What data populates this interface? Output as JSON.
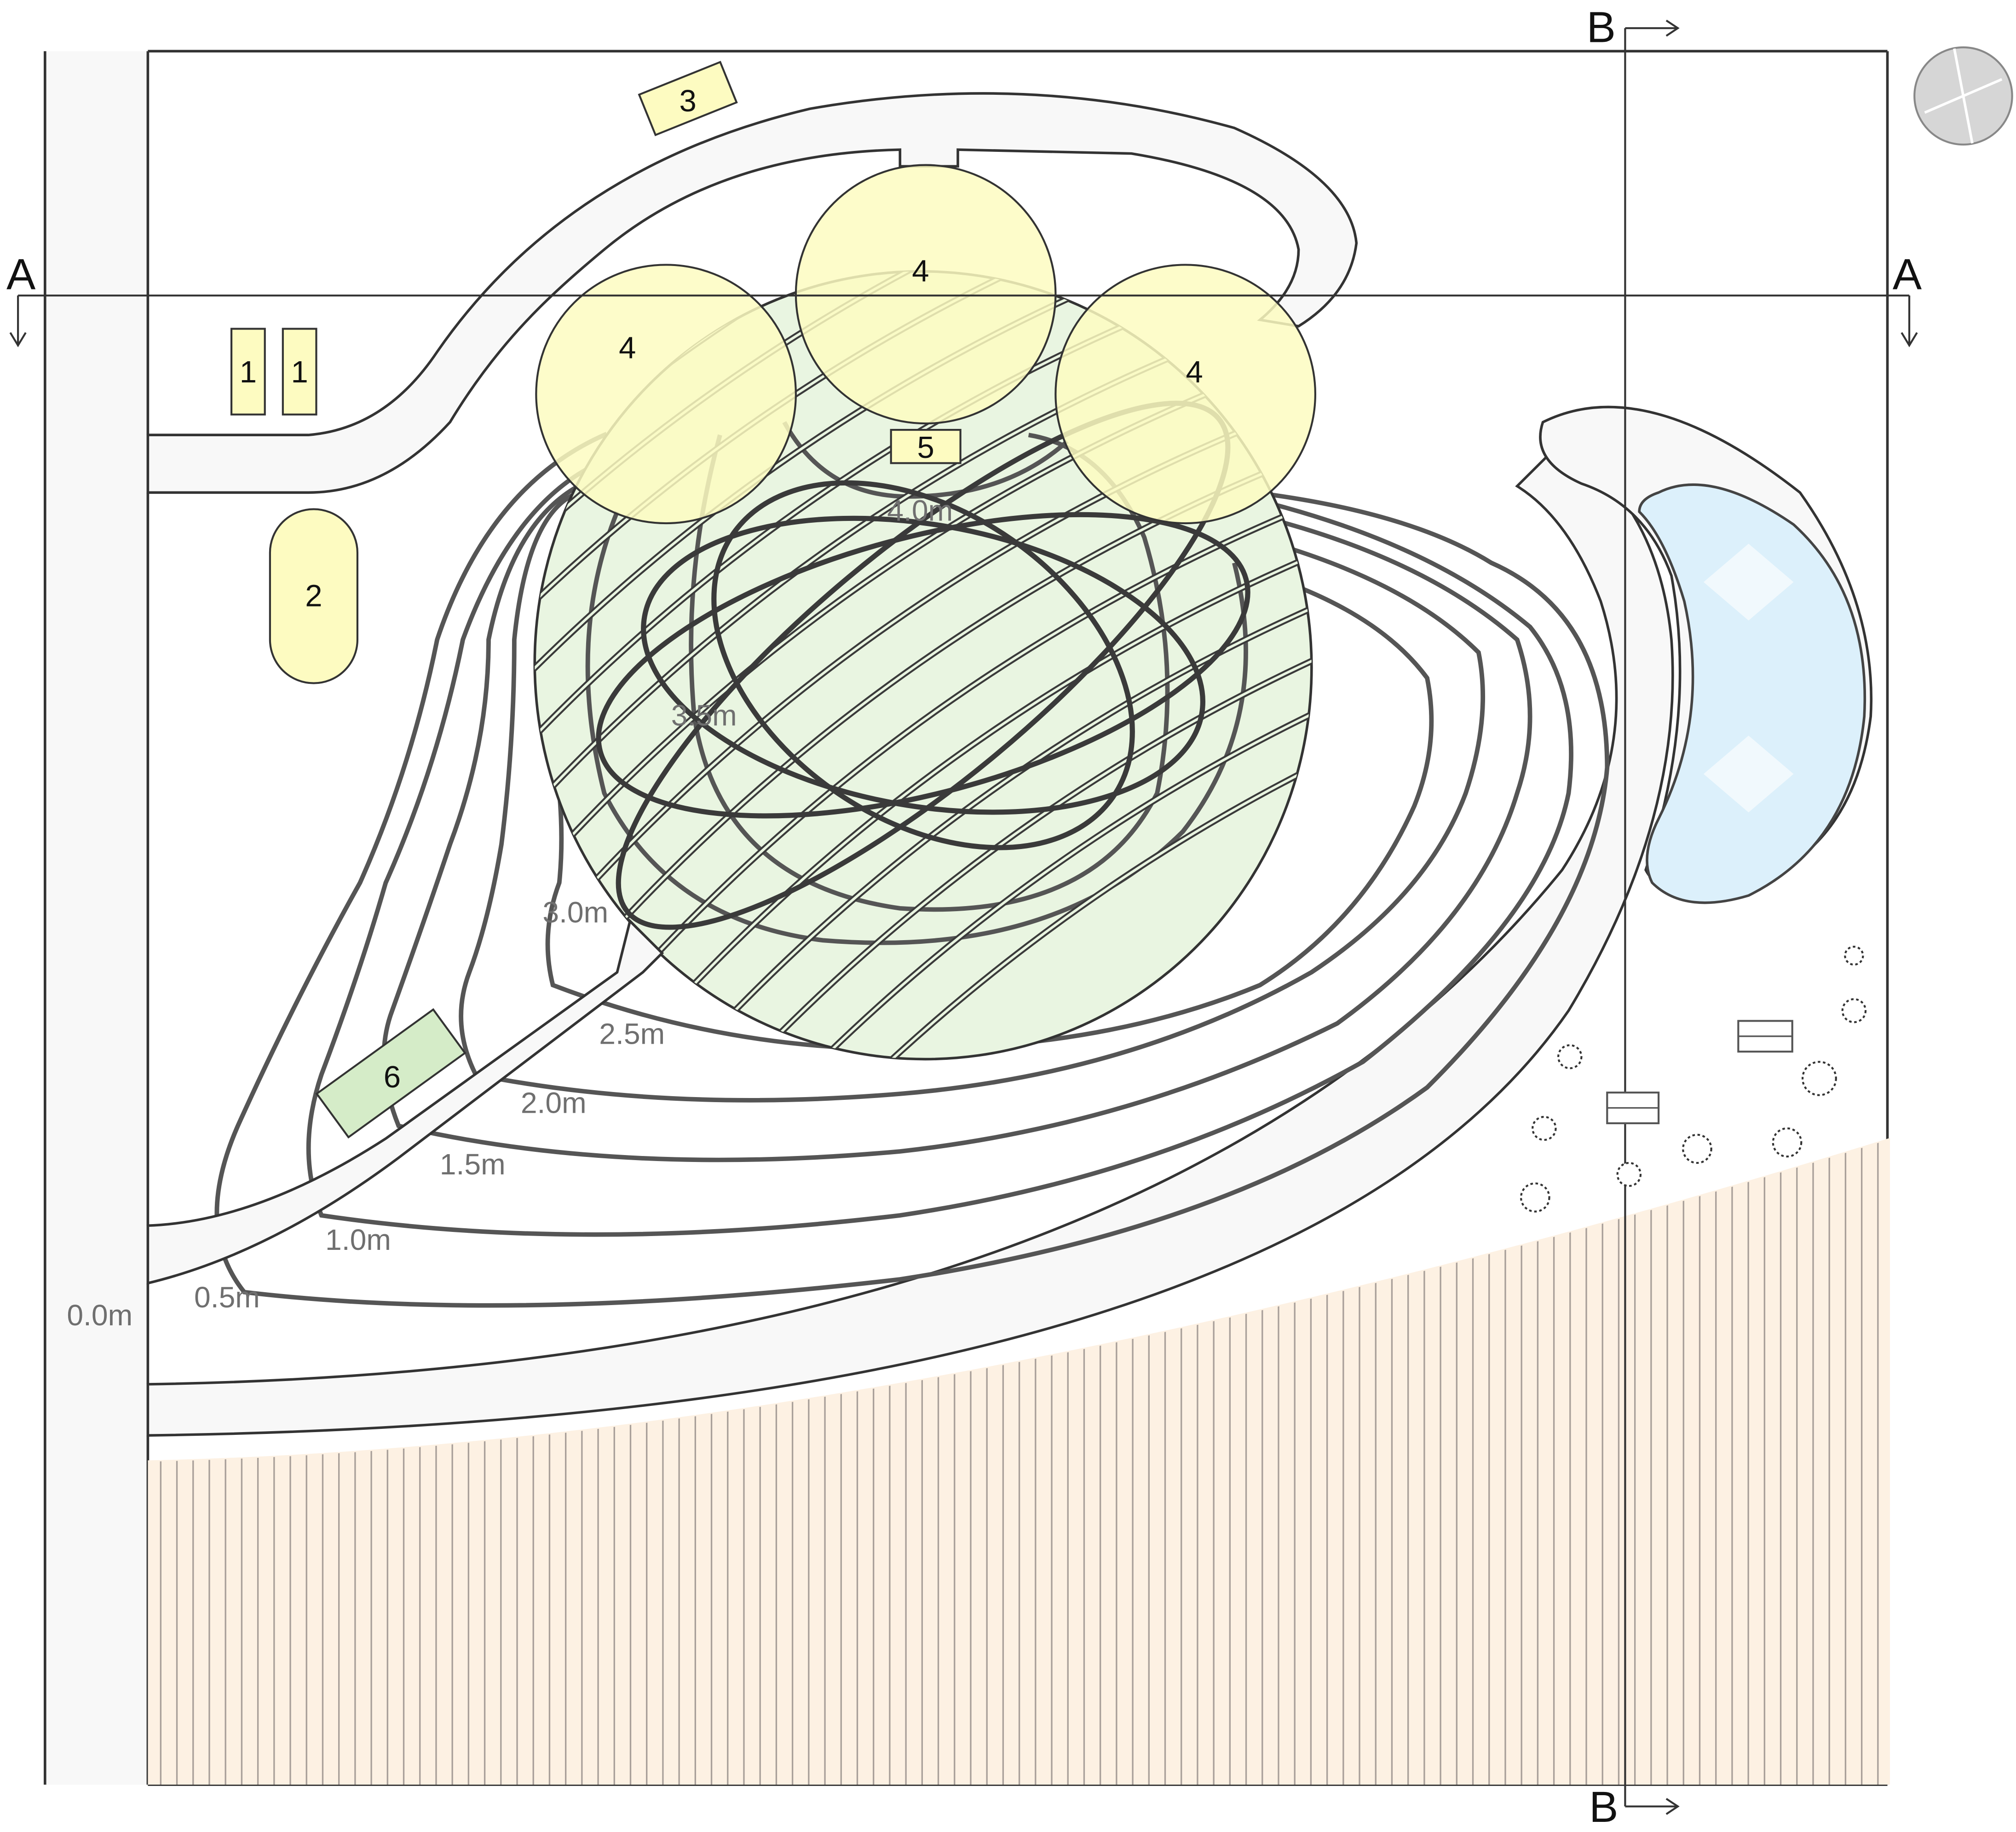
{
  "section_markers": {
    "a_left": "A",
    "a_right": "A",
    "b_top": "B",
    "b_bottom": "B"
  },
  "contours": [
    {
      "label": "0.0m"
    },
    {
      "label": "0.5m"
    },
    {
      "label": "1.0m"
    },
    {
      "label": "1.5m"
    },
    {
      "label": "2.0m"
    },
    {
      "label": "2.5m"
    },
    {
      "label": "3.0m"
    },
    {
      "label": "3.5m"
    },
    {
      "label": "4.0m"
    }
  ],
  "key_items": {
    "item_1a": "1",
    "item_1b": "1",
    "item_2": "2",
    "item_3": "3",
    "item_4a": "4",
    "item_4b": "4",
    "item_4c": "4",
    "item_5": "5",
    "item_6": "6"
  },
  "colors": {
    "path": "#f8f8f8",
    "mound": "#e9f5e1",
    "key_yellow": "#fdfbc1",
    "key_green": "#d5ecc8",
    "pond": "#dcf0fb",
    "field": "#fdf1e3",
    "compass": "#d6d6d6"
  },
  "icons": [
    "north-compass-icon",
    "bench-icon",
    "shrub-icon",
    "section-arrow-icon"
  ]
}
